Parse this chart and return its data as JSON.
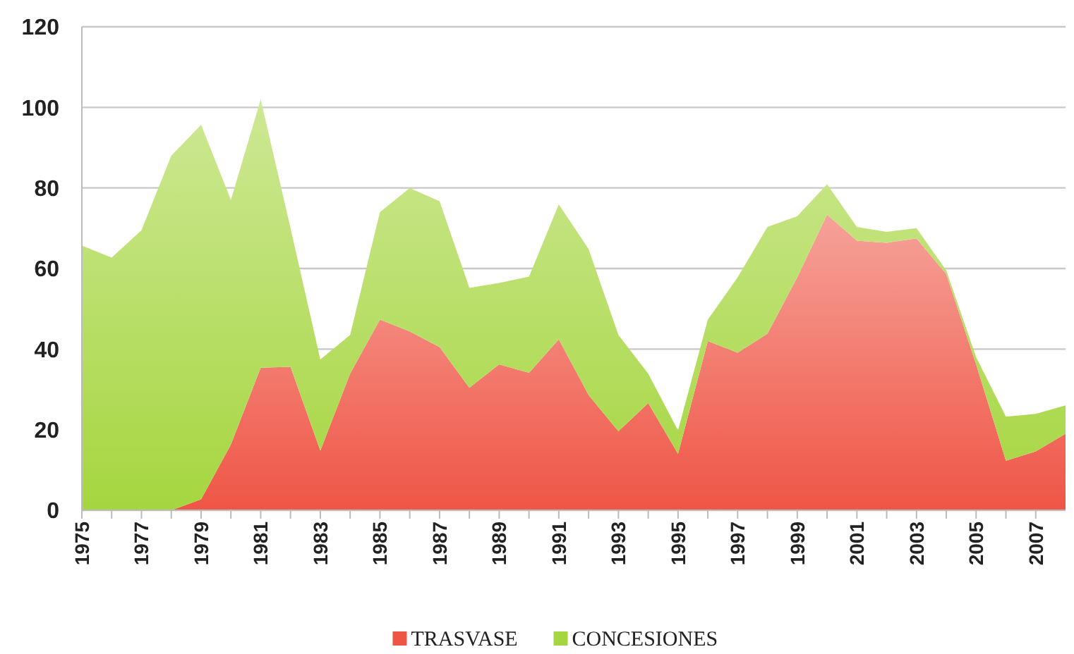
{
  "chart_data": {
    "type": "area",
    "stacked": true,
    "x": [
      1975,
      1976,
      1977,
      1978,
      1979,
      1980,
      1981,
      1982,
      1983,
      1984,
      1985,
      1986,
      1987,
      1988,
      1989,
      1990,
      1991,
      1992,
      1993,
      1994,
      1995,
      1996,
      1997,
      1998,
      1999,
      2000,
      2001,
      2002,
      2003,
      2004,
      2005,
      2006,
      2007,
      2008
    ],
    "series": [
      {
        "name": "TRASVASE",
        "color": "#ef5545",
        "values": [
          0,
          0,
          0,
          0,
          2.7,
          16.3,
          35.4,
          35.6,
          14.8,
          33.9,
          47.3,
          44.4,
          40.5,
          30.4,
          36.2,
          34.1,
          42.4,
          28.6,
          19.6,
          26.6,
          14,
          42,
          39.1,
          43.8,
          57.8,
          73.4,
          66.9,
          66.4,
          67.5,
          58.6,
          36.2,
          12.3,
          14.6,
          19
        ]
      },
      {
        "name": "CONCESIONES",
        "color": "#a5d63f",
        "values": [
          65.7,
          62.7,
          69.5,
          88,
          93,
          60.7,
          66.6,
          34.4,
          22.6,
          9.6,
          26.7,
          35.6,
          36.2,
          24.8,
          20.2,
          23.9,
          33.5,
          36.2,
          23.9,
          7.3,
          5.8,
          5.3,
          18.7,
          26.5,
          15.2,
          7.5,
          3.4,
          2.7,
          2.5,
          0.9,
          1.8,
          10.9,
          9.3,
          7
        ]
      }
    ],
    "xlim": [
      1975,
      2008
    ],
    "xticks": [
      1975,
      {
        "value": 1976,
        "label": null
      },
      1977,
      {
        "value": 1978,
        "label": null
      },
      1979,
      {
        "value": 1980,
        "label": null
      },
      1981,
      {
        "value": 1982,
        "label": null
      },
      1983,
      {
        "value": 1984,
        "label": null
      },
      1985,
      {
        "value": 1986,
        "label": null
      },
      1987,
      {
        "value": 1988,
        "label": null
      },
      1989,
      {
        "value": 1990,
        "label": null
      },
      1991,
      {
        "value": 1992,
        "label": null
      },
      1993,
      {
        "value": 1994,
        "label": null
      },
      1995,
      {
        "value": 1996,
        "label": null
      },
      1997,
      {
        "value": 1998,
        "label": null
      },
      1999,
      {
        "value": 2000,
        "label": null
      },
      2001,
      {
        "value": 2002,
        "label": null
      },
      2003,
      {
        "value": 2004,
        "label": null
      },
      2005,
      {
        "value": 2006,
        "label": null
      },
      2007
    ],
    "ylim": [
      0,
      120
    ],
    "yticks": [
      0,
      20,
      40,
      60,
      80,
      100,
      120
    ],
    "grid": "y",
    "legend": "bottom"
  }
}
